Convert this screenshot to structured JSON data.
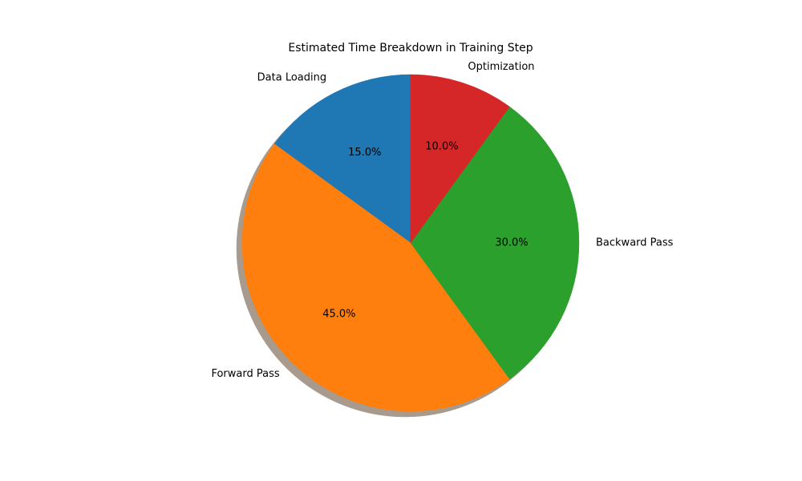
{
  "chart_data": {
    "type": "pie",
    "title": "Estimated Time Breakdown in Training Step",
    "categories": [
      "Data Loading",
      "Forward Pass",
      "Backward Pass",
      "Optimization"
    ],
    "values": [
      15.0,
      45.0,
      30.0,
      10.0
    ],
    "percent_labels": [
      "15.0%",
      "45.0%",
      "30.0%",
      "10.0%"
    ],
    "colors": [
      "#1f77b4",
      "#ff7f0e",
      "#2ca02c",
      "#d62728"
    ],
    "start_angle_deg": 90,
    "direction": "counterclockwise",
    "shadow": true,
    "legend": "none"
  }
}
